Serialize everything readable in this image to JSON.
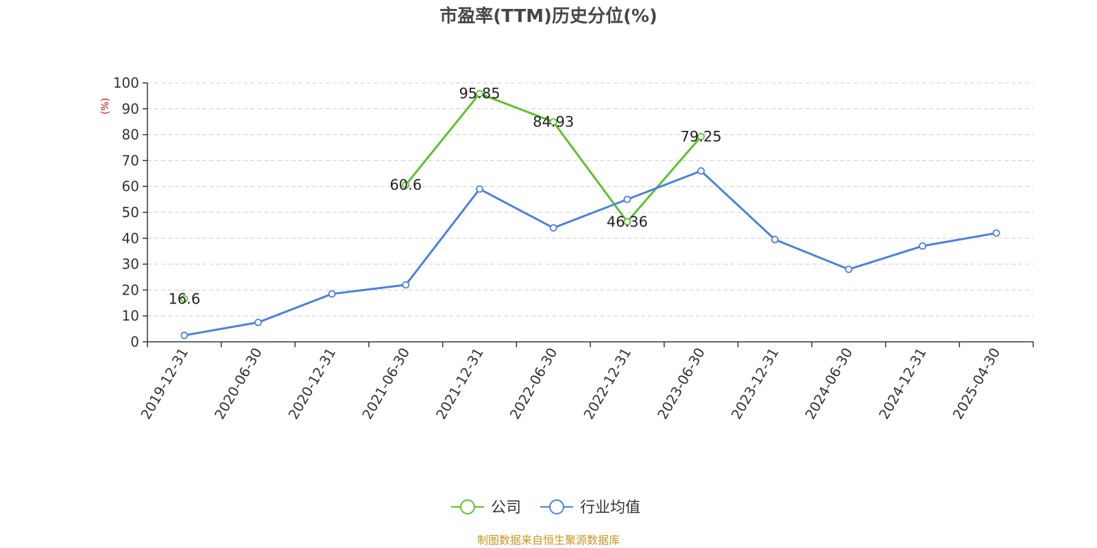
{
  "chart_data": {
    "type": "line",
    "title": "市盈率(TTM)历史分位(%)",
    "ylabel": "(%)",
    "xlabel": "",
    "ylim": [
      0,
      100
    ],
    "yticks": [
      0,
      10,
      20,
      30,
      40,
      50,
      60,
      70,
      80,
      90,
      100
    ],
    "categories": [
      "2019-12-31",
      "2020-06-30",
      "2020-12-31",
      "2021-06-30",
      "2021-12-31",
      "2022-06-30",
      "2022-12-31",
      "2023-06-30",
      "2023-12-31",
      "2024-06-30",
      "2024-12-31",
      "2025-04-30"
    ],
    "grid": true,
    "legend_position": "bottom",
    "series": [
      {
        "name": "公司",
        "color": "#5cc12b",
        "values": [
          16.6,
          null,
          null,
          60.6,
          95.85,
          84.93,
          46.36,
          79.25,
          null,
          null,
          null,
          null
        ],
        "data_labels": [
          "16.6",
          "",
          "",
          "60.6",
          "95.85",
          "84.93",
          "46.36",
          "79.25",
          "",
          "",
          "",
          ""
        ]
      },
      {
        "name": "行业均值",
        "color": "#4a80e0",
        "values": [
          2.5,
          7.5,
          18.5,
          22,
          59,
          44,
          55,
          66,
          39.5,
          28,
          37,
          42
        ]
      }
    ]
  },
  "source": "制图数据来自恒生聚源数据库"
}
